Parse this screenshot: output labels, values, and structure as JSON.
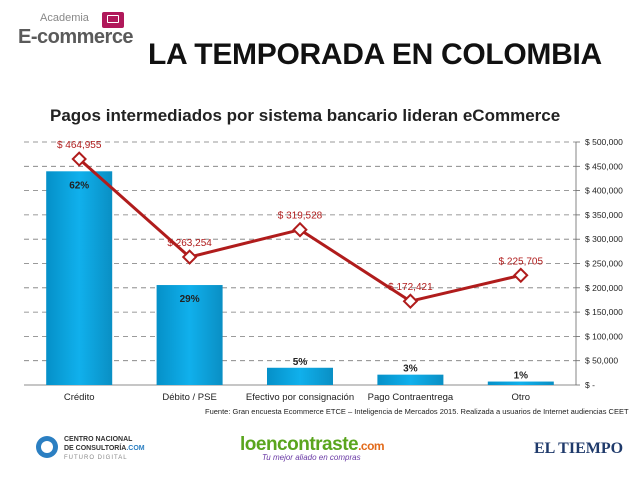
{
  "header": {
    "logo_line1": "Academia",
    "logo_line2": "E-commerce",
    "title": "LA TEMPORADA EN COLOMBIA"
  },
  "chart_data": {
    "type": "bar",
    "title": "Pagos intermediados por sistema bancario lideran eCommerce",
    "categories": [
      "Crédito",
      "Débito / PSE",
      "Efectivo por consignación",
      "Pago Contraentrega",
      "Otro"
    ],
    "bar_series": {
      "values": [
        62,
        29,
        5,
        3,
        1
      ],
      "labels": [
        "62%",
        "29%",
        "5%",
        "3%",
        "1%"
      ],
      "color": "#0aa0d8"
    },
    "line_series": {
      "values": [
        464955,
        263254,
        319528,
        172421,
        225705
      ],
      "labels": [
        "$ 464,955",
        "$ 263,254",
        "$ 319,528",
        "$ 172,421",
        "$ 225,705"
      ],
      "color": "#b01c1c"
    },
    "y2lim": [
      0,
      500000
    ],
    "y2_ticks": [
      0,
      50000,
      100000,
      150000,
      200000,
      250000,
      300000,
      350000,
      400000,
      450000,
      500000
    ],
    "y2_tick_labels": [
      "$ -",
      "$ 50,000",
      "$ 100,000",
      "$ 150,000",
      "$ 200,000",
      "$ 250,000",
      "$ 300,000",
      "$ 350,000",
      "$ 400,000",
      "$ 450,000",
      "$ 500,000"
    ],
    "grid": true
  },
  "source": "Fuente: Gran encuesta Ecommerce ETCE – Inteligencia de Mercados 2015. Realizada a usuarios de Internet audiencias CEET",
  "footer": {
    "cnc_line1": "CENTRO NACIONAL",
    "cnc_line2": "DE CONSULTORÍA",
    "cnc_domain": ".COM",
    "cnc_line3": "FUTURO DIGITAL",
    "loen_brand": "loencontraste",
    "loen_com": ".com",
    "loen_tag": "Tu mejor aliado en compras",
    "eltiempo": "EL TIEMPO"
  }
}
